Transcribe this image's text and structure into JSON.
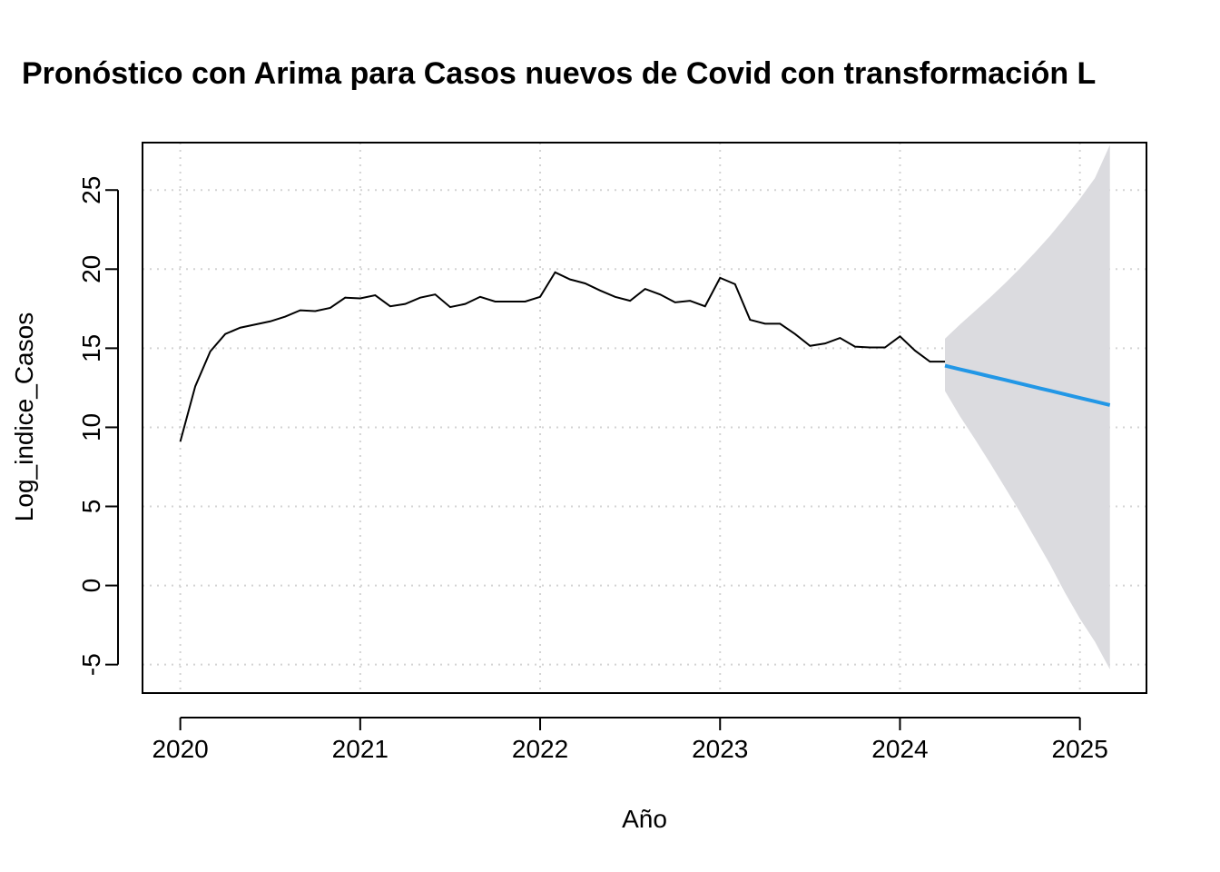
{
  "chart_data": {
    "type": "line",
    "title": "Pronóstico con Arima para Casos nuevos de Covid con transformación L",
    "xlabel": "Año",
    "ylabel": "Log_indice_Casos",
    "xlim": [
      2019.79,
      2025.37
    ],
    "ylim": [
      -6.8,
      28.0
    ],
    "x_ticks": [
      "2020",
      "2021",
      "2022",
      "2023",
      "2024",
      "2025"
    ],
    "y_ticks": [
      "-5",
      "0",
      "5",
      "10",
      "15",
      "20",
      "25"
    ],
    "grid": true,
    "grid_style": "dotted",
    "colors": {
      "historical": "#000000",
      "forecast": "#2297E6",
      "interval": "#DBDBDF",
      "grid": "#D3D3D3"
    },
    "series": [
      {
        "kind": "observed",
        "start": 2020.0,
        "frequency": 12,
        "values": [
          9.1,
          12.6,
          14.8,
          15.9,
          16.3,
          16.5,
          16.7,
          17.0,
          17.4,
          17.35,
          17.55,
          18.2,
          18.15,
          18.35,
          17.65,
          17.8,
          18.2,
          18.4,
          17.6,
          17.8,
          18.25,
          17.95,
          17.95,
          17.95,
          18.25,
          19.8,
          19.35,
          19.1,
          18.65,
          18.25,
          18.0,
          18.75,
          18.4,
          17.9,
          18.0,
          17.65,
          19.45,
          19.05,
          16.8,
          16.55,
          16.55,
          15.9,
          15.15,
          15.3,
          15.65,
          15.1,
          15.05,
          15.05,
          15.75,
          14.85,
          14.15,
          14.15
        ]
      },
      {
        "kind": "forecast",
        "start": 2024.25,
        "frequency": 12,
        "values": [
          13.9,
          13.67,
          13.45,
          13.22,
          13.0,
          12.77,
          12.54,
          12.32,
          12.09,
          11.86,
          11.64,
          11.41
        ]
      }
    ],
    "interval": {
      "start": 2024.25,
      "frequency": 12,
      "upper": [
        15.6,
        16.5,
        17.35,
        18.2,
        19.1,
        20.05,
        21.05,
        22.1,
        23.25,
        24.45,
        25.75,
        27.85
      ],
      "lower": [
        12.3,
        10.7,
        9.25,
        7.75,
        6.2,
        4.65,
        3.0,
        1.35,
        -0.45,
        -2.1,
        -3.55,
        -5.3
      ]
    }
  }
}
